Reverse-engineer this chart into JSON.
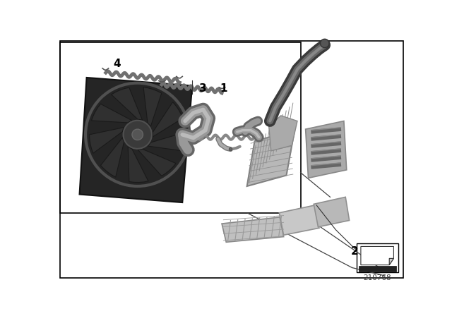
{
  "background_color": "#ffffff",
  "part_number": "210768",
  "label_fontsize": 11,
  "label_fontweight": "bold",
  "dark_gray": "#3a3a3a",
  "mid_gray": "#7a7a7a",
  "light_gray": "#b0b0b0",
  "lighter_gray": "#c8c8c8",
  "pipe_outer": "#707070",
  "pipe_inner": "#aaaaaa",
  "fan_dark": "#1e1e1e",
  "fan_mid": "#2e2e2e",
  "fan_rim": "#404040"
}
